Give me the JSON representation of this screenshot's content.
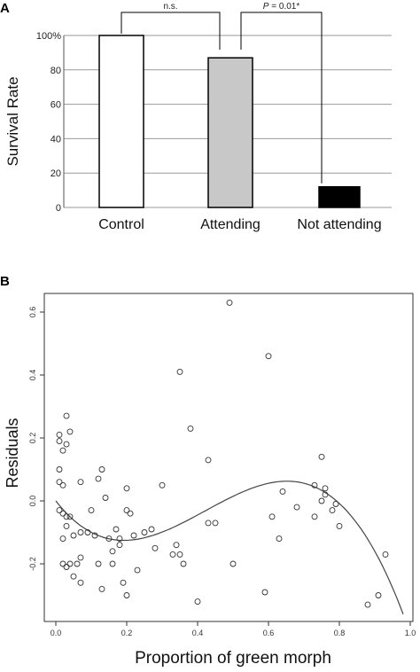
{
  "chart_data": [
    {
      "panel": "A",
      "type": "bar",
      "categories": [
        "Control",
        "Attending",
        "Not attending"
      ],
      "values": [
        100,
        87,
        12
      ],
      "colors": [
        "#ffffff",
        "#c8c8c8",
        "#000000"
      ],
      "ylabel": "Survival Rate",
      "ylim": [
        0,
        100
      ],
      "yticks": [
        "0",
        "20",
        "40",
        "60",
        "80",
        "100%"
      ],
      "grid": true,
      "comparisons": [
        {
          "from": "Control",
          "to": "Attending",
          "label": "n.s."
        },
        {
          "from": "Attending",
          "to": "Not attending",
          "label_italic": "P",
          "label_rest": " = 0.01*"
        }
      ]
    },
    {
      "panel": "B",
      "type": "scatter",
      "xlabel": "Proportion of green morph",
      "ylabel": "Residuals",
      "xlim": [
        0,
        1.0
      ],
      "ylim": [
        -0.36,
        0.66
      ],
      "xticks": [
        "0.0",
        "0.2",
        "0.4",
        "0.6",
        "0.8",
        "1.0"
      ],
      "yticks": [
        "-0.2",
        "0.0",
        "0.2",
        "0.4",
        "0.6"
      ],
      "fit_curve": "cubic",
      "points": [
        [
          0.01,
          0.19
        ],
        [
          0.01,
          0.21
        ],
        [
          0.01,
          0.1
        ],
        [
          0.01,
          0.06
        ],
        [
          0.02,
          0.05
        ],
        [
          0.02,
          0.16
        ],
        [
          0.03,
          0.27
        ],
        [
          0.03,
          0.18
        ],
        [
          0.04,
          0.22
        ],
        [
          0.01,
          -0.03
        ],
        [
          0.02,
          -0.04
        ],
        [
          0.03,
          -0.05
        ],
        [
          0.04,
          -0.05
        ],
        [
          0.03,
          -0.08
        ],
        [
          0.02,
          -0.12
        ],
        [
          0.05,
          -0.11
        ],
        [
          0.02,
          -0.2
        ],
        [
          0.03,
          -0.21
        ],
        [
          0.04,
          -0.2
        ],
        [
          0.06,
          -0.2
        ],
        [
          0.07,
          -0.18
        ],
        [
          0.07,
          -0.26
        ],
        [
          0.05,
          -0.24
        ],
        [
          0.07,
          0.06
        ],
        [
          0.07,
          -0.1
        ],
        [
          0.09,
          -0.1
        ],
        [
          0.1,
          -0.03
        ],
        [
          0.11,
          -0.11
        ],
        [
          0.12,
          -0.2
        ],
        [
          0.13,
          -0.28
        ],
        [
          0.12,
          0.07
        ],
        [
          0.13,
          0.1
        ],
        [
          0.14,
          0.01
        ],
        [
          0.15,
          -0.12
        ],
        [
          0.16,
          -0.2
        ],
        [
          0.16,
          -0.16
        ],
        [
          0.17,
          -0.09
        ],
        [
          0.18,
          -0.12
        ],
        [
          0.18,
          -0.14
        ],
        [
          0.19,
          -0.26
        ],
        [
          0.2,
          -0.3
        ],
        [
          0.2,
          0.04
        ],
        [
          0.2,
          -0.03
        ],
        [
          0.21,
          -0.04
        ],
        [
          0.22,
          -0.11
        ],
        [
          0.23,
          -0.22
        ],
        [
          0.25,
          -0.1
        ],
        [
          0.27,
          -0.09
        ],
        [
          0.28,
          -0.15
        ],
        [
          0.3,
          0.05
        ],
        [
          0.33,
          -0.17
        ],
        [
          0.34,
          -0.14
        ],
        [
          0.35,
          -0.17
        ],
        [
          0.36,
          -0.2
        ],
        [
          0.35,
          0.41
        ],
        [
          0.38,
          0.23
        ],
        [
          0.4,
          -0.32
        ],
        [
          0.43,
          0.13
        ],
        [
          0.43,
          -0.07
        ],
        [
          0.45,
          -0.07
        ],
        [
          0.49,
          0.63
        ],
        [
          0.5,
          -0.2
        ],
        [
          0.59,
          -0.29
        ],
        [
          0.6,
          0.46
        ],
        [
          0.61,
          -0.05
        ],
        [
          0.63,
          -0.12
        ],
        [
          0.64,
          0.03
        ],
        [
          0.68,
          -0.02
        ],
        [
          0.73,
          -0.05
        ],
        [
          0.73,
          0.05
        ],
        [
          0.75,
          0.0
        ],
        [
          0.75,
          0.14
        ],
        [
          0.76,
          0.04
        ],
        [
          0.76,
          0.02
        ],
        [
          0.78,
          -0.03
        ],
        [
          0.79,
          -0.01
        ],
        [
          0.8,
          -0.08
        ],
        [
          0.88,
          -0.33
        ],
        [
          0.91,
          -0.3
        ],
        [
          0.93,
          -0.17
        ]
      ]
    }
  ],
  "labels": {
    "panel_a": "A",
    "panel_b": "B"
  }
}
